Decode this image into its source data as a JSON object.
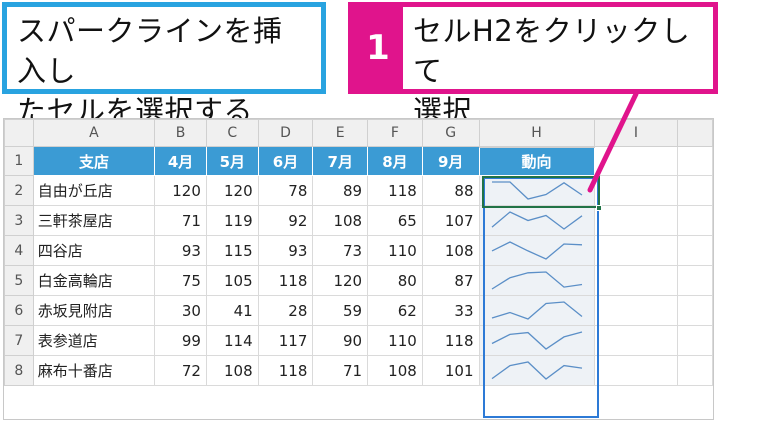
{
  "callouts": {
    "left": {
      "line1": "スパークラインを挿入し",
      "line2": "たセルを選択する"
    },
    "right": {
      "number": "1",
      "line1": "セルH2をクリックして",
      "line2": "選択"
    }
  },
  "sheet": {
    "columns": [
      "A",
      "B",
      "C",
      "D",
      "E",
      "F",
      "G",
      "H",
      "I"
    ],
    "header_row": {
      "row_num": "1",
      "cells": [
        "支店",
        "4月",
        "5月",
        "6月",
        "7月",
        "8月",
        "9月",
        "動向"
      ]
    },
    "rows": [
      {
        "row_num": "2",
        "name": "自由が丘店",
        "values": [
          120,
          120,
          78,
          89,
          118,
          88
        ]
      },
      {
        "row_num": "3",
        "name": "三軒茶屋店",
        "values": [
          71,
          119,
          92,
          108,
          65,
          107
        ]
      },
      {
        "row_num": "4",
        "name": "四谷店",
        "values": [
          93,
          115,
          93,
          73,
          110,
          108
        ]
      },
      {
        "row_num": "5",
        "name": "白金高輪店",
        "values": [
          75,
          105,
          118,
          120,
          80,
          87
        ]
      },
      {
        "row_num": "6",
        "name": "赤坂見附店",
        "values": [
          30,
          41,
          28,
          59,
          62,
          33
        ]
      },
      {
        "row_num": "7",
        "name": "表参道店",
        "values": [
          99,
          114,
          117,
          90,
          110,
          118
        ]
      },
      {
        "row_num": "8",
        "name": "麻布十番店",
        "values": [
          72,
          108,
          118,
          71,
          108,
          101
        ]
      }
    ],
    "selected_cell": "H2"
  },
  "colors": {
    "header_fill": "#3b9bd4",
    "callout_left_border": "#29a3e0",
    "callout_right_accent": "#e0148c",
    "sparkline": "#5b8fc7",
    "selection": "#217346"
  }
}
